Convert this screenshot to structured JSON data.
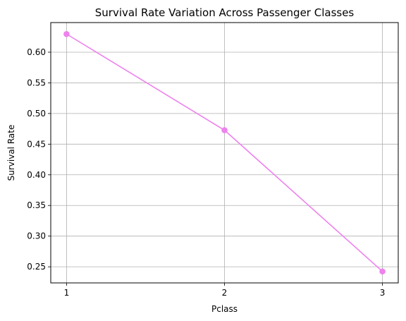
{
  "chart_data": {
    "type": "line",
    "title": "Survival Rate Variation Across Passenger Classes",
    "xlabel": "Pclass",
    "ylabel": "Survival Rate",
    "x": [
      1,
      2,
      3
    ],
    "x_ticks": [
      "1",
      "2",
      "3"
    ],
    "series": [
      {
        "values": [
          0.6296,
          0.4728,
          0.2424
        ]
      }
    ],
    "ylim": [
      0.2237,
      0.6483
    ],
    "xlim": [
      0.9,
      3.1
    ],
    "y_ticks": [
      "0.25",
      "0.30",
      "0.35",
      "0.40",
      "0.45",
      "0.50",
      "0.55",
      "0.60"
    ],
    "y_tick_values": [
      0.25,
      0.3,
      0.35,
      0.4,
      0.45,
      0.5,
      0.55,
      0.6
    ],
    "grid": true,
    "line_color": "#ee82ee",
    "grid_color": "#b0b0b0"
  }
}
